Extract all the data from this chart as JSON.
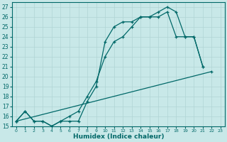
{
  "bg_color": "#c8e8e8",
  "grid_color": "#a8cecece",
  "line_color": "#006868",
  "xlabel": "Humidex (Indice chaleur)",
  "xlim": [
    -0.5,
    23.5
  ],
  "ylim": [
    15,
    27.5
  ],
  "yticks": [
    15,
    16,
    17,
    18,
    19,
    20,
    21,
    22,
    23,
    24,
    25,
    26,
    27
  ],
  "xticks": [
    0,
    1,
    2,
    3,
    4,
    5,
    6,
    7,
    8,
    9,
    10,
    11,
    12,
    13,
    14,
    15,
    16,
    17,
    18,
    19,
    20,
    21,
    22,
    23
  ],
  "line1_x": [
    0,
    1,
    2,
    3,
    4,
    5,
    6,
    7,
    8,
    9,
    10,
    11,
    12,
    13,
    14,
    15,
    16,
    17,
    18,
    19,
    20,
    21
  ],
  "line1_y": [
    15.5,
    16.5,
    15.5,
    15.5,
    15.0,
    15.5,
    15.5,
    15.5,
    17.5,
    19.0,
    23.5,
    25.0,
    25.5,
    25.5,
    26.0,
    26.0,
    26.5,
    27.0,
    26.5,
    24.0,
    24.0,
    21.0
  ],
  "line2_x": [
    0,
    22
  ],
  "line2_y": [
    15.5,
    20.5
  ],
  "line3_x": [
    0,
    1,
    2,
    3,
    4,
    5,
    6,
    7,
    8,
    9,
    10,
    11,
    12,
    13,
    14,
    15,
    16,
    17,
    18,
    19,
    20,
    21
  ],
  "line3_y": [
    15.5,
    16.5,
    15.5,
    15.5,
    15.0,
    15.5,
    16.0,
    16.5,
    18.0,
    19.5,
    22.0,
    23.5,
    24.0,
    25.0,
    26.0,
    26.0,
    26.0,
    26.5,
    24.0,
    24.0,
    24.0,
    21.0
  ],
  "tick_fontsize": 5.5,
  "xlabel_fontsize": 6.5
}
